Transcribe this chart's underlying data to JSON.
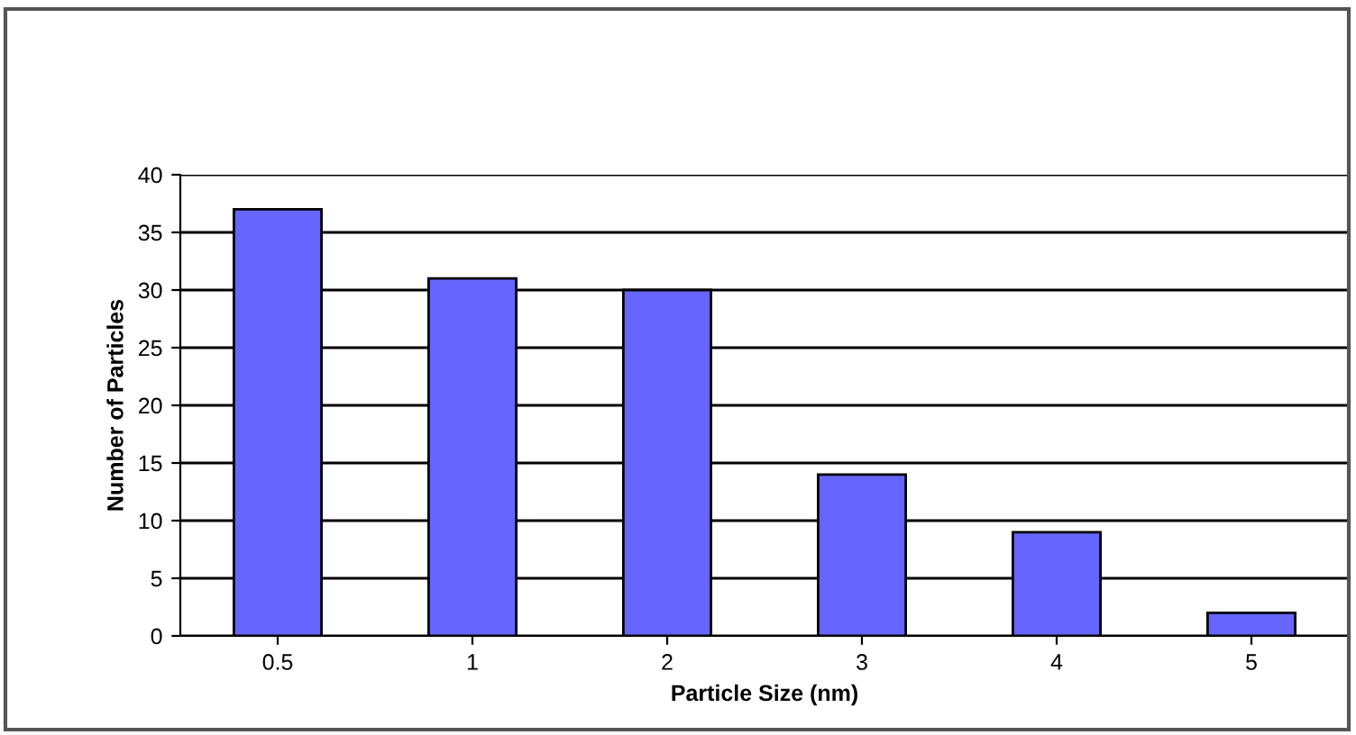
{
  "chart_data": {
    "type": "bar",
    "xlabel": "Particle Size (nm)",
    "ylabel": "Number of Particles",
    "categories": [
      "0.5",
      "1",
      "2",
      "3",
      "4",
      "5"
    ],
    "values": [
      37,
      31,
      30,
      14,
      9,
      2
    ],
    "color": "#6666ff",
    "ylim": [
      0,
      40
    ],
    "yticks": [
      0,
      5,
      10,
      15,
      20,
      25,
      30,
      35,
      40
    ],
    "grid": "y"
  }
}
